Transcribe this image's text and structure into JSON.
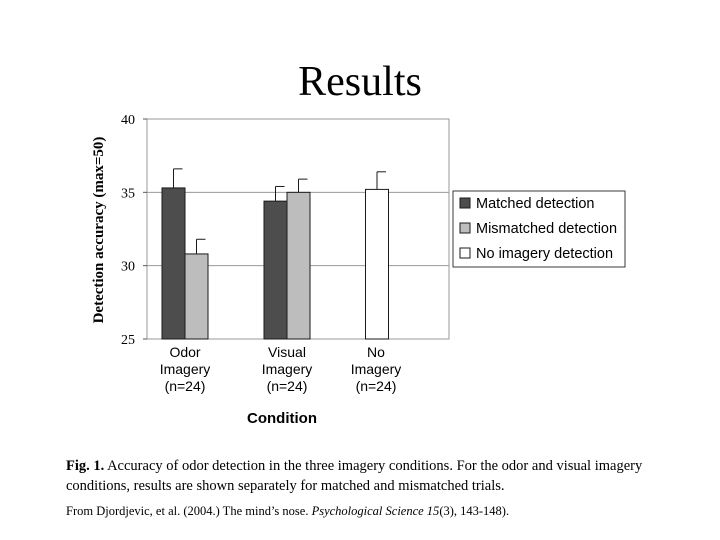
{
  "slide": {
    "title": "Results"
  },
  "chart_data": {
    "type": "bar",
    "title": "",
    "xlabel": "Condition",
    "ylabel": "Detection accuracy (max=50)",
    "ylim": [
      25,
      40
    ],
    "yticks": [
      "25",
      "30",
      "35",
      "40"
    ],
    "grid": "horizontal",
    "legend_placement": "right",
    "categories": [
      [
        "Odor",
        "Imagery",
        "(n=24)"
      ],
      [
        "Visual",
        "Imagery",
        "(n=24)"
      ],
      [
        "No",
        "Imagery",
        "(n=24)"
      ]
    ],
    "series": [
      {
        "name": "Matched detection",
        "color": "#4d4d4d",
        "values": [
          35.3,
          34.4,
          null
        ],
        "errors": [
          1.3,
          1.0,
          null
        ]
      },
      {
        "name": "Mismatched detection",
        "color": "#bdbdbd",
        "values": [
          30.8,
          35.0,
          null
        ],
        "errors": [
          1.0,
          0.9,
          null
        ]
      },
      {
        "name": "No imagery detection",
        "color": "#ffffff",
        "values": [
          null,
          null,
          35.2
        ],
        "errors": [
          null,
          null,
          1.2
        ]
      }
    ]
  },
  "caption": {
    "label": "Fig. 1.",
    "text": " Accuracy of odor detection in the three imagery conditions. For the odor and visual imagery conditions, results are shown separately for matched and mismatched trials."
  },
  "citation": {
    "prefix": "From Djordjevic, et al. (2004.) The mind’s nose.  ",
    "journal": "Psychological Science 15",
    "suffix": "(3), 143-148)."
  }
}
